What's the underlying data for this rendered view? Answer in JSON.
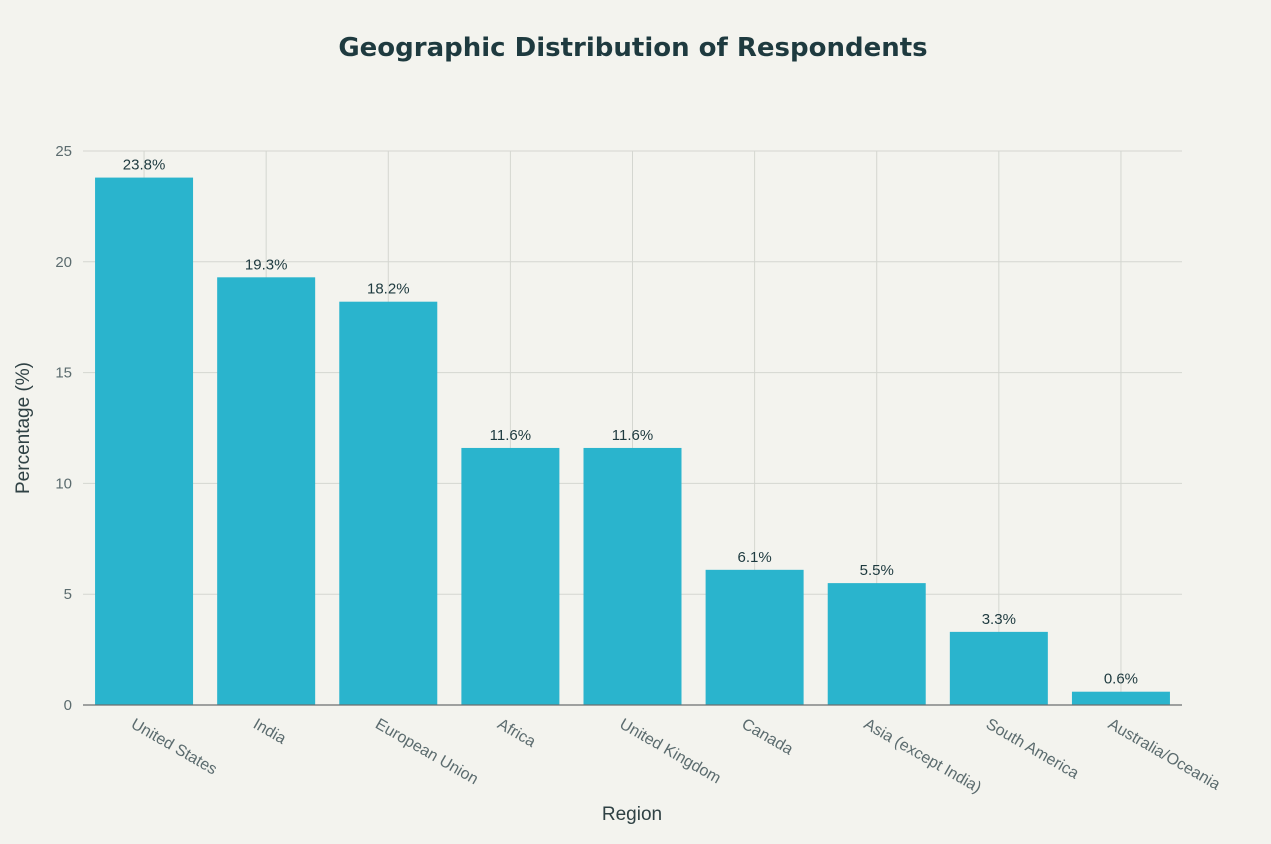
{
  "chart_data": {
    "type": "bar",
    "title": "Geographic Distribution of Respondents",
    "xlabel": "Region",
    "ylabel": "Percentage (%)",
    "ylim": [
      0,
      25
    ],
    "yticks": [
      0,
      5,
      10,
      15,
      20,
      25
    ],
    "grid": true,
    "categories": [
      "United States",
      "India",
      "European Union",
      "Africa",
      "United Kingdom",
      "Canada",
      "Asia (except India)",
      "South America",
      "Australia/Oceania"
    ],
    "values": [
      23.8,
      19.3,
      18.2,
      11.6,
      11.6,
      6.1,
      5.5,
      3.3,
      0.6
    ],
    "data_labels": [
      "23.8%",
      "19.3%",
      "18.2%",
      "11.6%",
      "11.6%",
      "6.1%",
      "5.5%",
      "3.3%",
      "0.6%"
    ],
    "bar_color": "#2ab4cd"
  }
}
